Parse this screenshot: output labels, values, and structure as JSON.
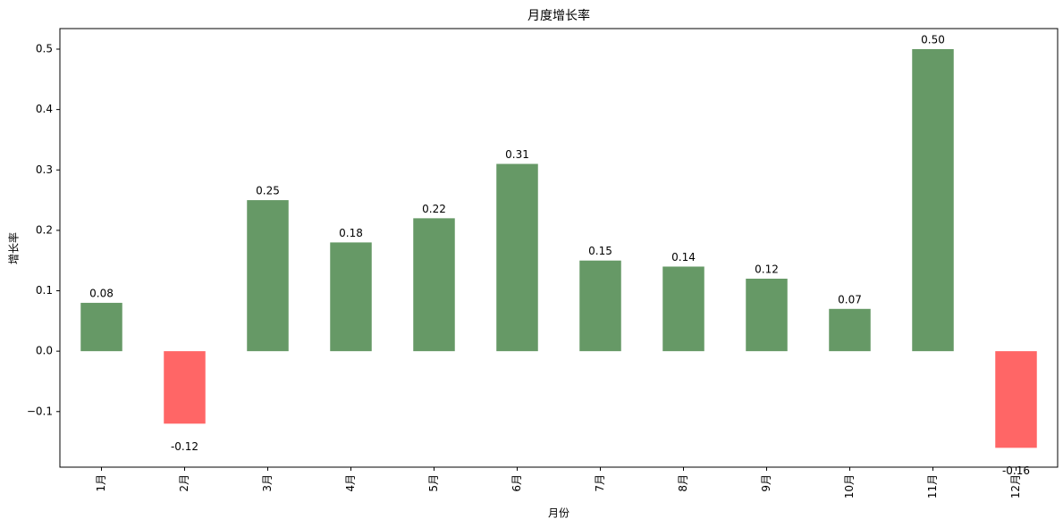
{
  "chart_data": {
    "type": "bar",
    "title": "月度增长率",
    "x_label": "月份",
    "y_label": "增长率",
    "categories": [
      "1月",
      "2月",
      "3月",
      "4月",
      "5月",
      "6月",
      "7月",
      "8月",
      "9月",
      "10月",
      "11月",
      "12月"
    ],
    "values": [
      0.08,
      -0.12,
      0.25,
      0.18,
      0.22,
      0.31,
      0.15,
      0.14,
      0.12,
      0.07,
      0.5,
      -0.16
    ],
    "value_labels": [
      "0.08",
      "-0.12",
      "0.25",
      "0.18",
      "0.22",
      "0.31",
      "0.15",
      "0.14",
      "0.12",
      "0.07",
      "0.50",
      "-0.16"
    ],
    "colors": [
      "#669966",
      "#ff6666",
      "#669966",
      "#669966",
      "#669966",
      "#669966",
      "#669966",
      "#669966",
      "#669966",
      "#669966",
      "#669966",
      "#ff6666"
    ],
    "ylim": [
      -0.192,
      0.534
    ],
    "yticks": [
      {
        "value": -0.1,
        "label": "−0.1"
      },
      {
        "value": 0,
        "label": "0.0"
      },
      0.1,
      0.2,
      0.3,
      0.4,
      0.5
    ],
    "grid": false
  }
}
